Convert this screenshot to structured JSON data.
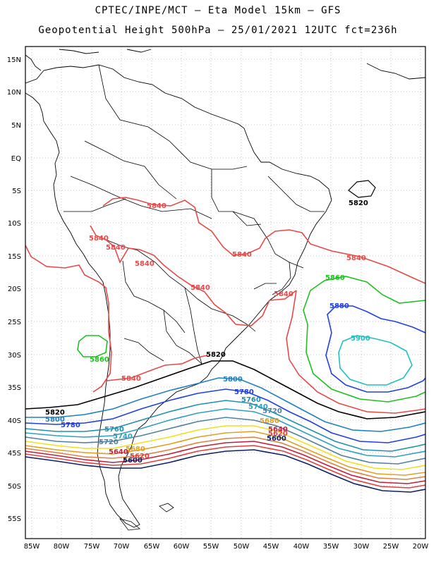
{
  "title_line1": "CPTEC/INPE/MCT –  Eta Model 15km – GFS",
  "title_line2": "Geopotential Height 500hPa – 25/01/2021 12UTC fct=236h",
  "lat_ticks": [
    "15N",
    "10N",
    "5N",
    "EQ",
    "5S",
    "10S",
    "15S",
    "20S",
    "25S",
    "30S",
    "35S",
    "40S",
    "45S",
    "50S",
    "55S"
  ],
  "lon_ticks": [
    "85W",
    "80W",
    "75W",
    "70W",
    "65W",
    "60W",
    "55W",
    "50W",
    "45W",
    "40W",
    "35W",
    "30W",
    "25W",
    "20W"
  ],
  "contour_colors": {
    "5900": "#20c0c0",
    "5880": "#2040e0",
    "5860": "#20c020",
    "5840": "#e84848",
    "5820": "#000000",
    "5800": "#2080c0",
    "5780": "#2040e0",
    "5760": "#2090b0",
    "5740": "#30a0c0",
    "5720": "#5080a0",
    "5700": "#f0e020",
    "5680": "#e0a020",
    "5660": "#e08040",
    "5640": "#c02040",
    "5620": "#e04040",
    "5600": "#102060"
  },
  "contour_labels": [
    {
      "text": "5820",
      "color": "#000000"
    },
    {
      "text": "5840",
      "color": "#e84848"
    },
    {
      "text": "5840",
      "color": "#e84848"
    },
    {
      "text": "5840",
      "color": "#e84848"
    },
    {
      "text": "5840",
      "color": "#e84848"
    },
    {
      "text": "5840",
      "color": "#e84848"
    },
    {
      "text": "5840",
      "color": "#e84848"
    },
    {
      "text": "5840",
      "color": "#e84848"
    },
    {
      "text": "5840",
      "color": "#e84848"
    },
    {
      "text": "5860",
      "color": "#20c020"
    },
    {
      "text": "5880",
      "color": "#2040e0"
    },
    {
      "text": "5900",
      "color": "#20c0c0"
    },
    {
      "text": "5860",
      "color": "#20c020"
    },
    {
      "text": "5820",
      "color": "#000000"
    },
    {
      "text": "5800",
      "color": "#2080c0"
    },
    {
      "text": "5780",
      "color": "#2040e0"
    },
    {
      "text": "5760",
      "color": "#2090b0"
    },
    {
      "text": "5740",
      "color": "#30a0c0"
    },
    {
      "text": "5720",
      "color": "#5080a0"
    },
    {
      "text": "5680",
      "color": "#e0a020"
    },
    {
      "text": "5640",
      "color": "#c02040"
    },
    {
      "text": "5620",
      "color": "#e04040"
    },
    {
      "text": "5600",
      "color": "#102060"
    },
    {
      "text": "5840",
      "color": "#e84848"
    },
    {
      "text": "5820",
      "color": "#000000"
    },
    {
      "text": "5800",
      "color": "#2080c0"
    },
    {
      "text": "5780",
      "color": "#2040e0"
    },
    {
      "text": "5760",
      "color": "#2090b0"
    },
    {
      "text": "5740",
      "color": "#30a0c0"
    },
    {
      "text": "5720",
      "color": "#5080a0"
    },
    {
      "text": "5680",
      "color": "#e0a020"
    },
    {
      "text": "5640",
      "color": "#c02040"
    },
    {
      "text": "5620",
      "color": "#e04040"
    },
    {
      "text": "5600",
      "color": "#102060"
    }
  ]
}
